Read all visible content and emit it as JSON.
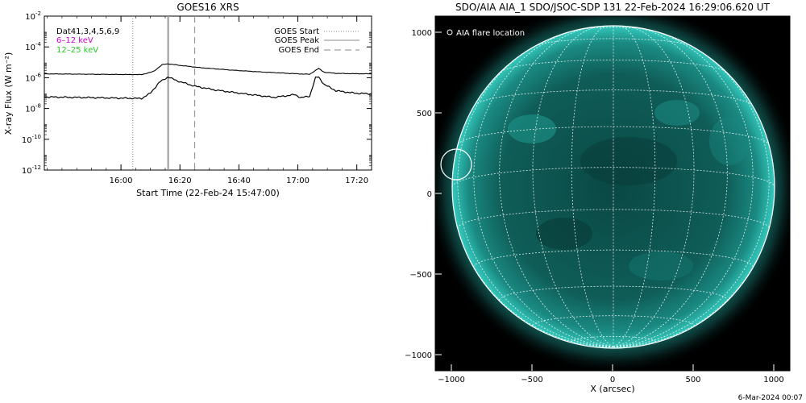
{
  "left_panel": {
    "title": "GOES16 XRS",
    "legend_top_left": [
      "Dat41,3,4,5,6,9",
      "6–12 keV",
      "12–25 keV"
    ],
    "legend_right": [
      "GOES Start",
      "GOES Peak",
      "GOES End"
    ],
    "colors": {
      "band_6_12": "#d000d0",
      "band_12_25": "#22cc22"
    }
  },
  "right_panel": {
    "title": "SDO/AIA AIA_1 SDO/JSOC-SDP 131 22-Feb-2024 16:29:06.620 UT",
    "legend": "AIA flare location",
    "footer_date": "6-Mar-2024 00:07",
    "colors": {
      "disk": "#0e5a55",
      "corona": "#20b0a6"
    }
  },
  "chart_data": [
    {
      "type": "line",
      "title": "GOES16 XRS",
      "xlabel": "Start Time (22-Feb-24 15:47:00)",
      "ylabel": "X-ray Flux (W m⁻²)",
      "yscale": "log",
      "ylim_exponent": [
        -12,
        -2
      ],
      "x_ticks": [
        "16:00",
        "16:20",
        "16:40",
        "17:00",
        "17:20"
      ],
      "y_tick_exponents": [
        -12,
        -10,
        -8,
        -6,
        -4,
        -2
      ],
      "x_minutes_range": [
        -13,
        98
      ],
      "events": [
        {
          "name": "GOES Start",
          "minute": 17,
          "style": "dotted"
        },
        {
          "name": "GOES Peak",
          "minute": 29,
          "style": "solid"
        },
        {
          "name": "GOES End",
          "minute": 38,
          "style": "dashed"
        }
      ],
      "series": [
        {
          "name": "6–12 keV",
          "minutes": [
            -13,
            5,
            20,
            24,
            27,
            29,
            33,
            40,
            50,
            60,
            70,
            77,
            80,
            82,
            86,
            92,
            98
          ],
          "log_flux": [
            -5.75,
            -5.78,
            -5.8,
            -5.6,
            -5.15,
            -5.1,
            -5.2,
            -5.35,
            -5.5,
            -5.62,
            -5.72,
            -5.78,
            -5.4,
            -5.65,
            -5.72,
            -5.74,
            -5.75
          ]
        },
        {
          "name": "12–25 keV",
          "minutes": [
            -13,
            5,
            20,
            23,
            26,
            29,
            32,
            38,
            45,
            55,
            65,
            70,
            72,
            74,
            77,
            79,
            80,
            82,
            86,
            92,
            98
          ],
          "log_flux": [
            -7.25,
            -7.3,
            -7.35,
            -7.0,
            -6.3,
            -5.95,
            -6.2,
            -6.55,
            -6.8,
            -7.05,
            -7.28,
            -7.15,
            -7.1,
            -7.3,
            -7.2,
            -6.0,
            -5.95,
            -6.45,
            -6.85,
            -7.0,
            -7.05
          ]
        }
      ]
    },
    {
      "type": "scatter",
      "title": "SDO/AIA AIA_1 SDO/JSOC-SDP 131 22-Feb-2024 16:29:06.620 UT",
      "xlabel": "X (arcsec)",
      "ylabel": "",
      "xlim": [
        -1100,
        1100
      ],
      "ylim": [
        -1100,
        1100
      ],
      "x_ticks": [
        -1000,
        -500,
        0,
        500,
        1000
      ],
      "y_ticks": [
        -1000,
        -500,
        0,
        500,
        1000
      ],
      "points": [
        {
          "name": "AIA flare location",
          "x": -970,
          "y": 180
        }
      ]
    }
  ]
}
